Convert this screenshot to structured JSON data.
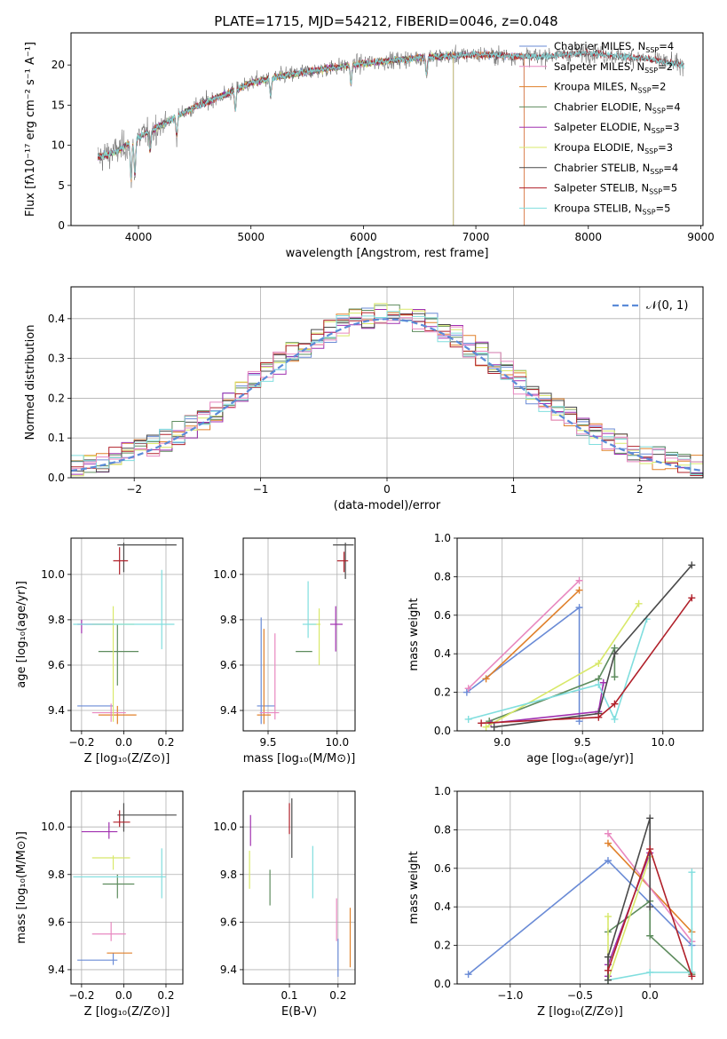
{
  "title": "PLATE=1715, MJD=54212, FIBERID=0046, z=0.048",
  "colors": [
    "#6a8bd6",
    "#e0802a",
    "#5e8c5e",
    "#a030b0",
    "#d8e86a",
    "#4a4a4a",
    "#b0202a",
    "#80dede",
    "#e888c0"
  ],
  "chart_data": [
    {
      "id": "spectrum",
      "type": "line",
      "xlabel": "wavelength [Angstrom, rest frame]",
      "ylabel": "Flux [fλ10⁻¹⁷ erg cm⁻² s⁻¹ A⁻¹]",
      "xlim": [
        3400,
        9020
      ],
      "ylim": [
        0,
        24
      ],
      "xticks": [
        4000,
        5000,
        6000,
        7000,
        8000,
        9000
      ],
      "yticks": [
        0,
        5,
        10,
        15,
        20
      ],
      "continuum": {
        "x": [
          3640,
          3800,
          4000,
          4200,
          4500,
          4800,
          5000,
          5300,
          5600,
          6000,
          6500,
          7000,
          7500,
          8000,
          8500,
          8850
        ],
        "y": [
          8.5,
          9.2,
          11.0,
          12.5,
          14.8,
          16.5,
          17.8,
          18.7,
          19.4,
          20.2,
          20.9,
          21.3,
          21.0,
          21.5,
          20.8,
          20.0
        ]
      },
      "series": [
        {
          "name": "Chabrier MILES",
          "nssp": "4",
          "color": "#6a8bd6",
          "xmax": 7430
        },
        {
          "name": "Salpeter MILES",
          "nssp": "2",
          "color": "#e888c0",
          "xmax": 7430
        },
        {
          "name": "Kroupa MILES",
          "nssp": "2",
          "color": "#e0802a",
          "xmax": 7430
        },
        {
          "name": "Chabrier ELODIE",
          "nssp": "4",
          "color": "#5e8c5e",
          "xmax": 6800
        },
        {
          "name": "Salpeter ELODIE",
          "nssp": "3",
          "color": "#a030b0",
          "xmax": 6800
        },
        {
          "name": "Kroupa ELODIE",
          "nssp": "3",
          "color": "#d8e86a",
          "xmax": 6800
        },
        {
          "name": "Chabrier STELIB",
          "nssp": "4",
          "color": "#4a4a4a",
          "xmax": 8850
        },
        {
          "name": "Salpeter STELIB",
          "nssp": "5",
          "color": "#b0202a",
          "xmax": 8850
        },
        {
          "name": "Kroupa STELIB",
          "nssp": "5",
          "color": "#80dede",
          "xmax": 8850
        }
      ],
      "nssp_label": "N",
      "nssp_sub": "SSP"
    },
    {
      "id": "residuals",
      "type": "histogram",
      "xlabel": "(data-model)/error",
      "ylabel": "Normed distribution",
      "xlim": [
        -2.5,
        2.5
      ],
      "ylim": [
        0,
        0.48
      ],
      "xticks": [
        -2,
        -1,
        0,
        1,
        2
      ],
      "yticks": [
        0.0,
        0.1,
        0.2,
        0.3,
        0.4
      ],
      "legend": "𝒩(0, 1)",
      "bin_width": 0.1
    },
    {
      "id": "age-vs-Z",
      "type": "errorbar",
      "xlabel": "Z [log₁₀(Z/Z⊙)]",
      "ylabel": "age  [log₁₀(age/yr)]",
      "xlim": [
        -0.25,
        0.28
      ],
      "ylim": [
        9.31,
        10.16
      ],
      "xticks": [
        -0.2,
        0.0,
        0.2
      ],
      "yticks": [
        9.4,
        9.6,
        9.8,
        10.0
      ],
      "points": [
        {
          "c": "#6a8bd6",
          "x": -0.05,
          "xl": -0.22,
          "xh": -0.05,
          "y": 9.42,
          "yl": 9.42,
          "yh": 9.42
        },
        {
          "c": "#e0802a",
          "x": -0.03,
          "xl": -0.12,
          "xh": 0.06,
          "y": 9.38,
          "yl": 9.34,
          "yh": 9.42
        },
        {
          "c": "#e888c0",
          "x": -0.06,
          "xl": -0.15,
          "xh": 0.01,
          "y": 9.39,
          "yl": 9.35,
          "yh": 9.43
        },
        {
          "c": "#5e8c5e",
          "x": -0.03,
          "xl": -0.12,
          "xh": 0.07,
          "y": 9.66,
          "yl": 9.51,
          "yh": 9.78
        },
        {
          "c": "#a030b0",
          "x": -0.2,
          "xl": -0.22,
          "xh": -0.05,
          "y": 9.78,
          "yl": 9.74,
          "yh": 9.8
        },
        {
          "c": "#d8e86a",
          "x": -0.05,
          "xl": -0.15,
          "xh": 0.05,
          "y": 9.78,
          "yl": 9.35,
          "yh": 9.86
        },
        {
          "c": "#80dede",
          "x": 0.18,
          "xl": -0.24,
          "xh": 0.24,
          "y": 9.78,
          "yl": 9.67,
          "yh": 10.02
        },
        {
          "c": "#4a4a4a",
          "x": 0.0,
          "xl": -0.03,
          "xh": 0.25,
          "y": 10.13,
          "yl": 10.01,
          "yh": 10.14
        },
        {
          "c": "#b0202a",
          "x": -0.02,
          "xl": -0.05,
          "xh": 0.02,
          "y": 10.06,
          "yl": 10.0,
          "yh": 10.12
        }
      ]
    },
    {
      "id": "age-vs-mass",
      "type": "errorbar",
      "xlabel": "mass [log₁₀(M/M⊙)]",
      "ylabel": "",
      "xlim": [
        9.32,
        10.13
      ],
      "ylim": [
        9.31,
        10.16
      ],
      "xticks": [
        9.5,
        10.0
      ],
      "yticks": [
        9.4,
        9.6,
        9.8,
        10.0
      ],
      "points": [
        {
          "c": "#6a8bd6",
          "x": 9.45,
          "xl": 9.42,
          "xh": 9.55,
          "y": 9.42,
          "yl": 9.34,
          "yh": 9.81
        },
        {
          "c": "#e0802a",
          "x": 9.47,
          "xl": 9.42,
          "xh": 9.52,
          "y": 9.38,
          "yl": 9.34,
          "yh": 9.76
        },
        {
          "c": "#e888c0",
          "x": 9.55,
          "xl": 9.44,
          "xh": 9.58,
          "y": 9.39,
          "yl": 9.36,
          "yh": 9.74
        },
        {
          "c": "#5e8c5e",
          "x": 9.76,
          "xl": 9.7,
          "xh": 9.82,
          "y": 9.66,
          "yl": 9.66,
          "yh": 9.66
        },
        {
          "c": "#a030b0",
          "x": 9.99,
          "xl": 9.95,
          "xh": 10.04,
          "y": 9.78,
          "yl": 9.66,
          "yh": 9.86
        },
        {
          "c": "#d8e86a",
          "x": 9.87,
          "xl": 9.8,
          "xh": 9.88,
          "y": 9.78,
          "yl": 9.6,
          "yh": 9.85
        },
        {
          "c": "#80dede",
          "x": 9.79,
          "xl": 9.75,
          "xh": 9.85,
          "y": 9.78,
          "yl": 9.72,
          "yh": 9.97
        },
        {
          "c": "#4a4a4a",
          "x": 10.06,
          "xl": 9.97,
          "xh": 10.12,
          "y": 10.13,
          "yl": 9.98,
          "yh": 10.14
        },
        {
          "c": "#b0202a",
          "x": 10.05,
          "xl": 10.0,
          "xh": 10.08,
          "y": 10.06,
          "yl": 10.01,
          "yh": 10.1
        }
      ]
    },
    {
      "id": "weight-vs-age",
      "type": "line",
      "xlabel": "age  [log₁₀(age/yr)]",
      "ylabel": "mass weight",
      "xlim": [
        8.72,
        10.25
      ],
      "ylim": [
        0,
        1
      ],
      "xticks": [
        9.0,
        9.5,
        10.0
      ],
      "yticks": [
        0.0,
        0.2,
        0.4,
        0.6,
        0.8,
        1.0
      ],
      "series": [
        {
          "c": "#6a8bd6",
          "pts": [
            [
              8.78,
              0.2
            ],
            [
              9.48,
              0.64
            ],
            [
              9.48,
              0.05
            ]
          ]
        },
        {
          "c": "#e0802a",
          "pts": [
            [
              8.9,
              0.27
            ],
            [
              9.48,
              0.73
            ]
          ]
        },
        {
          "c": "#e888c0",
          "pts": [
            [
              8.79,
              0.22
            ],
            [
              9.48,
              0.78
            ]
          ]
        },
        {
          "c": "#5e8c5e",
          "pts": [
            [
              8.92,
              0.05
            ],
            [
              9.6,
              0.27
            ],
            [
              9.7,
              0.43
            ],
            [
              9.7,
              0.28
            ]
          ]
        },
        {
          "c": "#a030b0",
          "pts": [
            [
              8.93,
              0.04
            ],
            [
              9.6,
              0.1
            ],
            [
              9.63,
              0.25
            ]
          ]
        },
        {
          "c": "#d8e86a",
          "pts": [
            [
              8.9,
              0.02
            ],
            [
              9.6,
              0.35
            ],
            [
              9.85,
              0.66
            ]
          ]
        },
        {
          "c": "#80dede",
          "pts": [
            [
              8.79,
              0.06
            ],
            [
              9.6,
              0.24
            ],
            [
              9.7,
              0.06
            ],
            [
              9.9,
              0.58
            ]
          ]
        },
        {
          "c": "#4a4a4a",
          "pts": [
            [
              8.95,
              0.02
            ],
            [
              9.6,
              0.09
            ],
            [
              9.7,
              0.4
            ],
            [
              10.18,
              0.86
            ]
          ]
        },
        {
          "c": "#b0202a",
          "pts": [
            [
              8.87,
              0.04
            ],
            [
              9.6,
              0.07
            ],
            [
              9.7,
              0.14
            ],
            [
              10.18,
              0.69
            ]
          ]
        }
      ]
    },
    {
      "id": "mass-vs-Z",
      "type": "errorbar",
      "xlabel": "Z [log₁₀(Z/Z⊙)]",
      "ylabel": "mass [log₁₀(M/M⊙)]",
      "xlim": [
        -0.25,
        0.28
      ],
      "ylim": [
        9.34,
        10.15
      ],
      "xticks": [
        -0.2,
        0.0,
        0.2
      ],
      "yticks": [
        9.4,
        9.6,
        9.8,
        10.0
      ],
      "points": [
        {
          "c": "#6a8bd6",
          "x": -0.05,
          "xl": -0.22,
          "xh": -0.03,
          "y": 9.44,
          "yl": 9.42,
          "yh": 9.47
        },
        {
          "c": "#e0802a",
          "x": -0.03,
          "xl": -0.08,
          "xh": 0.04,
          "y": 9.47,
          "yl": 9.47,
          "yh": 9.47
        },
        {
          "c": "#e888c0",
          "x": -0.06,
          "xl": -0.15,
          "xh": 0.01,
          "y": 9.55,
          "yl": 9.52,
          "yh": 9.6
        },
        {
          "c": "#5e8c5e",
          "x": -0.03,
          "xl": -0.1,
          "xh": 0.05,
          "y": 9.76,
          "yl": 9.7,
          "yh": 9.8
        },
        {
          "c": "#a030b0",
          "x": -0.07,
          "xl": -0.2,
          "xh": -0.03,
          "y": 9.98,
          "yl": 9.95,
          "yh": 10.02
        },
        {
          "c": "#d8e86a",
          "x": -0.05,
          "xl": -0.15,
          "xh": 0.03,
          "y": 9.87,
          "yl": 9.82,
          "yh": 9.88
        },
        {
          "c": "#80dede",
          "x": 0.18,
          "xl": -0.24,
          "xh": 0.2,
          "y": 9.79,
          "yl": 9.7,
          "yh": 9.91
        },
        {
          "c": "#4a4a4a",
          "x": 0.0,
          "xl": -0.03,
          "xh": 0.25,
          "y": 10.05,
          "yl": 9.98,
          "yh": 10.1
        },
        {
          "c": "#b0202a",
          "x": -0.02,
          "xl": -0.05,
          "xh": 0.03,
          "y": 10.02,
          "yl": 10.0,
          "yh": 10.07
        }
      ]
    },
    {
      "id": "mass-vs-ebv",
      "type": "errorbar",
      "xlabel": "E(B-V)",
      "ylabel": "",
      "xlim": [
        0.005,
        0.235
      ],
      "ylim": [
        9.34,
        10.15
      ],
      "xticks": [
        0.1,
        0.2
      ],
      "yticks": [
        9.4,
        9.6,
        9.8,
        10.0
      ],
      "points": [
        {
          "c": "#6a8bd6",
          "x": 0.2,
          "xl": 0.2,
          "xh": 0.2,
          "y": 9.44,
          "yl": 9.37,
          "yh": 9.53
        },
        {
          "c": "#e0802a",
          "x": 0.225,
          "xl": 0.225,
          "xh": 0.225,
          "y": 9.47,
          "yl": 9.41,
          "yh": 9.66
        },
        {
          "c": "#e888c0",
          "x": 0.197,
          "xl": 0.197,
          "xh": 0.197,
          "y": 9.55,
          "yl": 9.52,
          "yh": 9.7
        },
        {
          "c": "#5e8c5e",
          "x": 0.06,
          "xl": 0.06,
          "xh": 0.06,
          "y": 9.76,
          "yl": 9.67,
          "yh": 9.82
        },
        {
          "c": "#a030b0",
          "x": 0.02,
          "xl": 0.02,
          "xh": 0.02,
          "y": 9.98,
          "yl": 9.92,
          "yh": 10.05
        },
        {
          "c": "#d8e86a",
          "x": 0.018,
          "xl": 0.018,
          "xh": 0.018,
          "y": 9.87,
          "yl": 9.74,
          "yh": 9.9
        },
        {
          "c": "#80dede",
          "x": 0.148,
          "xl": 0.148,
          "xh": 0.148,
          "y": 9.79,
          "yl": 9.7,
          "yh": 9.92
        },
        {
          "c": "#4a4a4a",
          "x": 0.105,
          "xl": 0.105,
          "xh": 0.105,
          "y": 10.05,
          "yl": 9.87,
          "yh": 10.12
        },
        {
          "c": "#b0202a",
          "x": 0.1,
          "xl": 0.1,
          "xh": 0.1,
          "y": 10.02,
          "yl": 9.97,
          "yh": 10.1
        }
      ]
    },
    {
      "id": "weight-vs-Z",
      "type": "line",
      "xlabel": "Z [log₁₀(Z/Z⊙)]",
      "ylabel": "mass weight",
      "xlim": [
        -1.38,
        0.38
      ],
      "ylim": [
        0,
        1
      ],
      "xticks": [
        -1.0,
        -0.5,
        0.0
      ],
      "yticks": [
        0.0,
        0.2,
        0.4,
        0.6,
        0.8,
        1.0
      ],
      "series": [
        {
          "c": "#6a8bd6",
          "pts": [
            [
              -1.3,
              0.05
            ],
            [
              -0.3,
              0.64
            ],
            [
              0.3,
              0.2
            ]
          ]
        },
        {
          "c": "#e0802a",
          "pts": [
            [
              -0.3,
              0.73
            ],
            [
              0.3,
              0.27
            ]
          ]
        },
        {
          "c": "#e888c0",
          "pts": [
            [
              -0.3,
              0.78
            ],
            [
              0.3,
              0.22
            ]
          ]
        },
        {
          "c": "#5e8c5e",
          "pts": [
            [
              -0.3,
              0.27
            ],
            [
              0.0,
              0.43
            ],
            [
              0.0,
              0.25
            ],
            [
              0.3,
              0.05
            ]
          ]
        },
        {
          "c": "#a030b0",
          "pts": [
            [
              -0.3,
              0.04
            ],
            [
              -0.3,
              0.1
            ],
            [
              0.0,
              0.68
            ]
          ]
        },
        {
          "c": "#d8e86a",
          "pts": [
            [
              -0.3,
              0.35
            ],
            [
              -0.3,
              0.02
            ],
            [
              0.0,
              0.66
            ]
          ]
        },
        {
          "c": "#80dede",
          "pts": [
            [
              -0.3,
              0.02
            ],
            [
              0.0,
              0.06
            ],
            [
              0.3,
              0.06
            ],
            [
              0.3,
              0.58
            ]
          ]
        },
        {
          "c": "#4a4a4a",
          "pts": [
            [
              -0.3,
              0.02
            ],
            [
              -0.3,
              0.14
            ],
            [
              0.0,
              0.86
            ],
            [
              0.0,
              0.4
            ]
          ]
        },
        {
          "c": "#b0202a",
          "pts": [
            [
              -0.3,
              0.07
            ],
            [
              0.0,
              0.7
            ],
            [
              0.3,
              0.04
            ]
          ]
        }
      ]
    }
  ]
}
